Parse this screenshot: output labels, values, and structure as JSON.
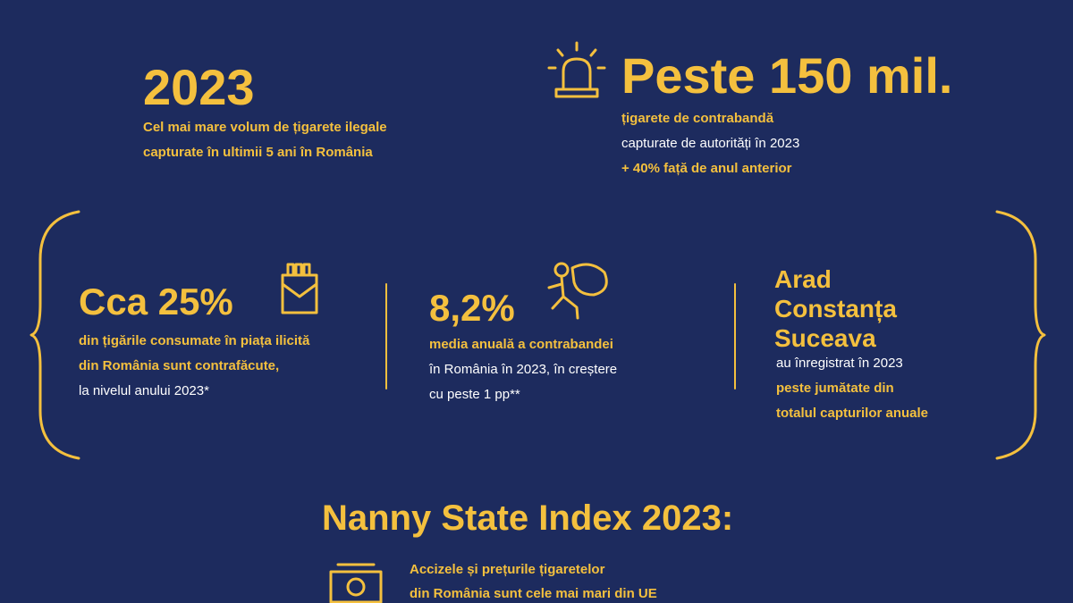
{
  "top_left": {
    "headline": "2023",
    "lines": [
      "Cel mai mare volum de țigarete ilegale",
      "capturate în ultimii 5 ani în România"
    ]
  },
  "top_right": {
    "headline": "Peste 150 mil.",
    "lines": [
      "țigarete de contrabandă",
      "capturate de autorități în 2023",
      "+ 40% față de anul anterior"
    ]
  },
  "panels": [
    {
      "headline": "Cca 25%",
      "lines": [
        "din țigările consumate în piața ilicită",
        "din România sunt contrafăcute,",
        "la nivelul anului 2023*"
      ]
    },
    {
      "headline": "8,2%",
      "lines": [
        "media anuală a contrabandei",
        "în România în 2023, în creștere",
        "cu peste 1 pp**"
      ]
    },
    {
      "headline": [
        "Arad",
        "Constanța",
        "Suceava"
      ],
      "lines": [
        "au înregistrat în 2023",
        "peste jumătate din",
        "totalul capturilor anuale"
      ]
    }
  ],
  "bottom": {
    "title": "Nanny State Index 2023:",
    "lines": [
      "Accizele și prețurile țigaretelor",
      "din România sunt cele mai mari din UE"
    ]
  }
}
